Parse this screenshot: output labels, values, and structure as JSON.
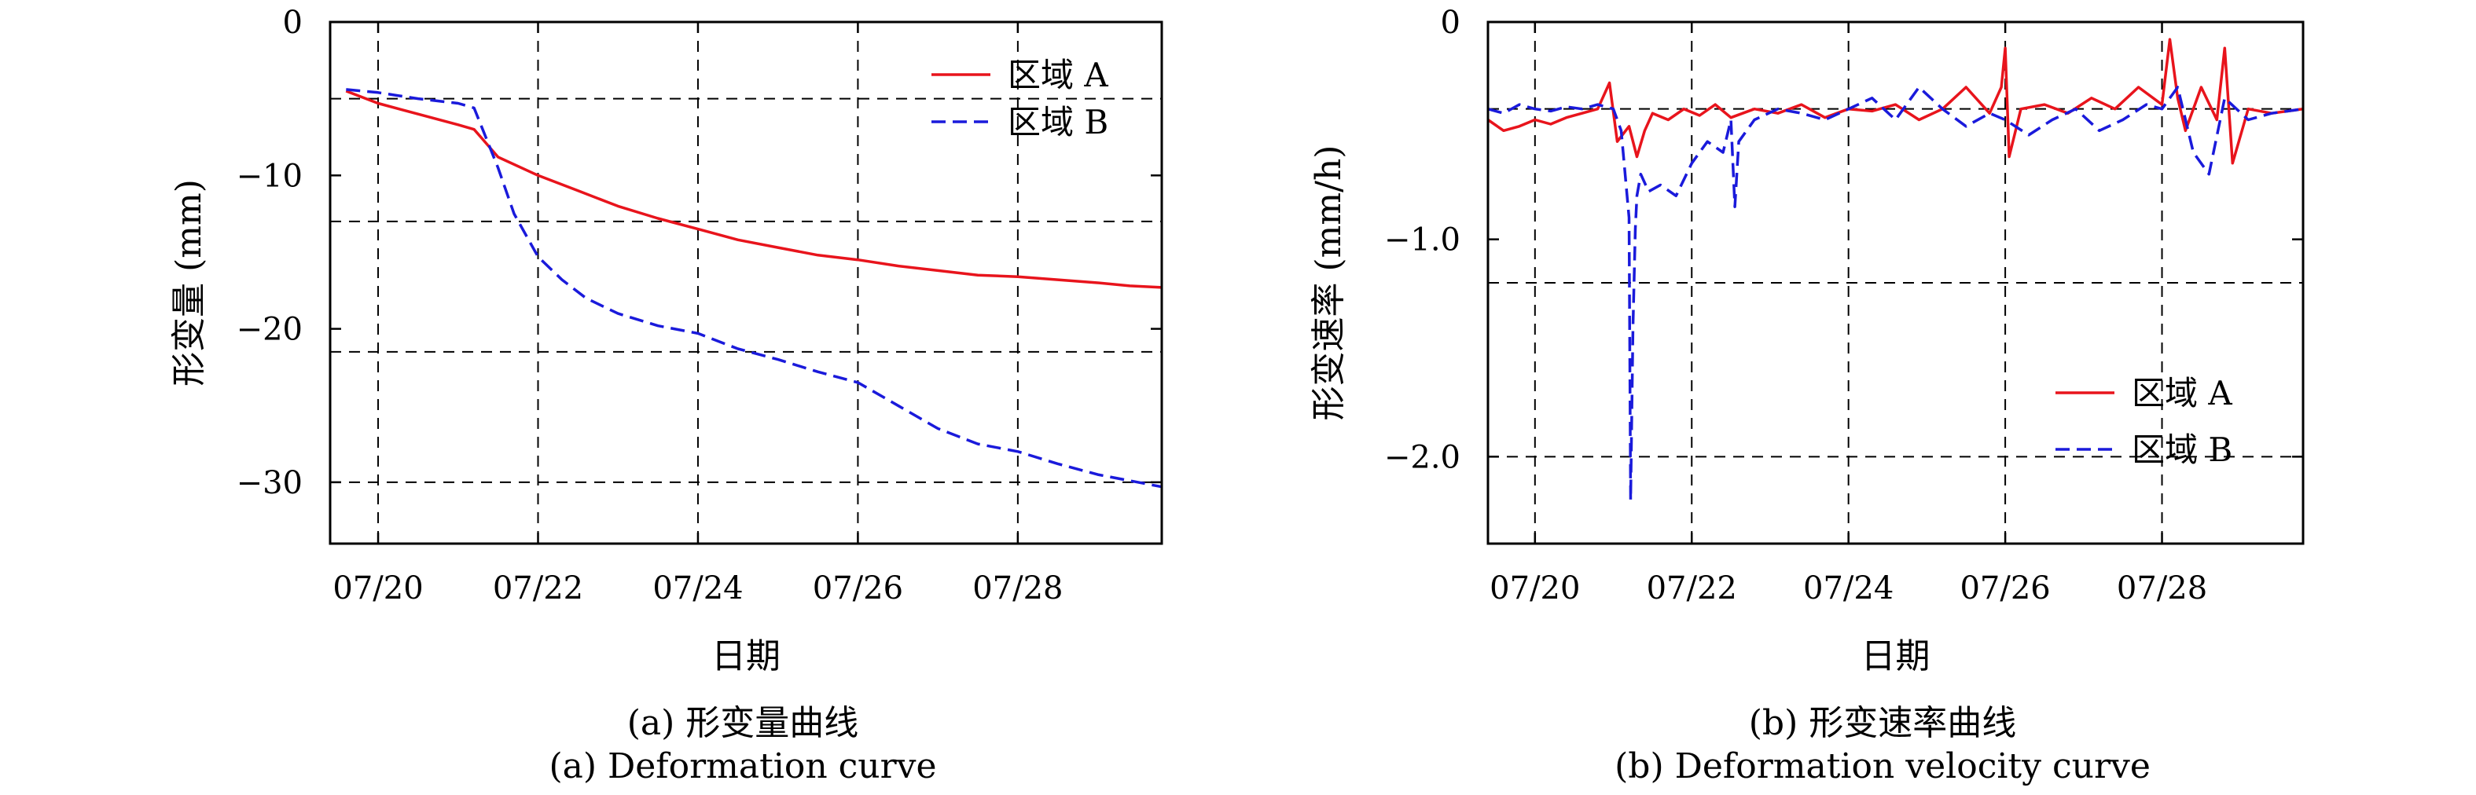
{
  "chart_data": [
    {
      "type": "line",
      "xlabel": "日期",
      "ylabel": "形变量 (mm)",
      "caption_zh": "(a) 形变量曲线",
      "caption_en": "(a) Deformation curve",
      "xlim": [
        19.4,
        29.8
      ],
      "ylim": [
        -34,
        0
      ],
      "xticks": [
        20,
        22,
        24,
        26,
        28
      ],
      "xtick_labels": [
        "07/20",
        "07/22",
        "07/24",
        "07/26",
        "07/28"
      ],
      "yticks": [
        0,
        -10,
        -20,
        -30
      ],
      "ytick_labels": [
        "0",
        "−10",
        "−20",
        "−30"
      ],
      "grid": true,
      "legend_position": "top-right",
      "series": [
        {
          "name": "区域 A",
          "color": "#e8141c",
          "dash": "solid",
          "x": [
            19.6,
            20.0,
            20.5,
            21.0,
            21.2,
            21.3,
            21.5,
            22.0,
            22.5,
            23.0,
            23.5,
            24.0,
            24.5,
            25.0,
            25.5,
            26.0,
            26.5,
            27.0,
            27.5,
            28.0,
            28.5,
            29.0,
            29.4,
            29.8
          ],
          "y": [
            -4.5,
            -5.3,
            -6.0,
            -6.7,
            -7.0,
            -7.6,
            -8.8,
            -10.0,
            -11.0,
            -12.0,
            -12.8,
            -13.5,
            -14.2,
            -14.7,
            -15.2,
            -15.5,
            -15.9,
            -16.2,
            -16.5,
            -16.6,
            -16.8,
            -17.0,
            -17.2,
            -17.3
          ]
        },
        {
          "name": "区域 B",
          "color": "#1a1adb",
          "dash": "dashed",
          "x": [
            19.6,
            20.0,
            20.5,
            21.0,
            21.2,
            21.3,
            21.5,
            21.7,
            22.0,
            22.3,
            22.6,
            23.0,
            23.5,
            24.0,
            24.5,
            25.0,
            25.5,
            26.0,
            26.5,
            27.0,
            27.5,
            28.0,
            28.5,
            29.0,
            29.4,
            29.8
          ],
          "y": [
            -4.4,
            -4.6,
            -5.0,
            -5.3,
            -5.6,
            -6.9,
            -9.5,
            -12.5,
            -15.3,
            -16.8,
            -18.0,
            -19.0,
            -19.8,
            -20.3,
            -21.3,
            -22.0,
            -22.8,
            -23.5,
            -25.0,
            -26.5,
            -27.5,
            -28.0,
            -28.8,
            -29.5,
            -29.9,
            -30.3
          ]
        }
      ]
    },
    {
      "type": "line",
      "xlabel": "日期",
      "ylabel": "形变速率 (mm/h)",
      "caption_zh": "(b) 形变速率曲线",
      "caption_en": "(b) Deformation velocity curve",
      "xlim": [
        19.4,
        29.8
      ],
      "ylim": [
        -2.4,
        0
      ],
      "xticks": [
        20,
        22,
        24,
        26,
        28
      ],
      "xtick_labels": [
        "07/20",
        "07/22",
        "07/24",
        "07/26",
        "07/28"
      ],
      "yticks": [
        0,
        -1.0,
        -2.0
      ],
      "ytick_labels": [
        "0",
        "−1.0",
        "−2.0"
      ],
      "grid": true,
      "legend_position": "bottom-right",
      "series": [
        {
          "name": "区域 A",
          "color": "#e8141c",
          "dash": "solid",
          "x": [
            19.4,
            19.6,
            19.8,
            20.0,
            20.2,
            20.4,
            20.6,
            20.8,
            20.95,
            21.05,
            21.2,
            21.3,
            21.4,
            21.5,
            21.7,
            21.9,
            22.1,
            22.3,
            22.5,
            22.8,
            23.1,
            23.4,
            23.7,
            24.0,
            24.3,
            24.6,
            24.9,
            25.2,
            25.5,
            25.8,
            25.95,
            26.0,
            26.05,
            26.2,
            26.5,
            26.8,
            27.1,
            27.4,
            27.7,
            28.0,
            28.1,
            28.2,
            28.3,
            28.5,
            28.7,
            28.8,
            28.9,
            29.1,
            29.4,
            29.8
          ],
          "y": [
            -0.45,
            -0.5,
            -0.48,
            -0.45,
            -0.47,
            -0.44,
            -0.42,
            -0.4,
            -0.28,
            -0.55,
            -0.48,
            -0.62,
            -0.5,
            -0.42,
            -0.45,
            -0.4,
            -0.43,
            -0.38,
            -0.44,
            -0.4,
            -0.42,
            -0.38,
            -0.44,
            -0.4,
            -0.41,
            -0.38,
            -0.45,
            -0.4,
            -0.3,
            -0.42,
            -0.3,
            -0.12,
            -0.62,
            -0.4,
            -0.38,
            -0.42,
            -0.35,
            -0.4,
            -0.3,
            -0.38,
            -0.08,
            -0.35,
            -0.5,
            -0.3,
            -0.45,
            -0.12,
            -0.65,
            -0.4,
            -0.42,
            -0.4
          ]
        },
        {
          "name": "区域 B",
          "color": "#1a1adb",
          "dash": "dashed",
          "x": [
            19.4,
            19.6,
            19.8,
            20.0,
            20.2,
            20.4,
            20.6,
            20.8,
            21.0,
            21.1,
            21.2,
            21.22,
            21.25,
            21.28,
            21.3,
            21.35,
            21.45,
            21.6,
            21.8,
            22.0,
            22.2,
            22.4,
            22.5,
            22.55,
            22.6,
            22.8,
            23.1,
            23.4,
            23.7,
            24.0,
            24.3,
            24.6,
            24.9,
            25.2,
            25.5,
            25.8,
            26.0,
            26.3,
            26.6,
            26.9,
            27.2,
            27.5,
            27.8,
            28.0,
            28.2,
            28.4,
            28.6,
            28.8,
            29.1,
            29.4,
            29.8
          ],
          "y": [
            -0.4,
            -0.42,
            -0.38,
            -0.4,
            -0.41,
            -0.39,
            -0.4,
            -0.38,
            -0.4,
            -0.5,
            -0.9,
            -2.2,
            -1.4,
            -0.95,
            -0.8,
            -0.7,
            -0.78,
            -0.75,
            -0.8,
            -0.65,
            -0.55,
            -0.6,
            -0.45,
            -0.85,
            -0.55,
            -0.45,
            -0.4,
            -0.42,
            -0.45,
            -0.4,
            -0.35,
            -0.45,
            -0.3,
            -0.4,
            -0.48,
            -0.42,
            -0.45,
            -0.52,
            -0.45,
            -0.4,
            -0.5,
            -0.45,
            -0.38,
            -0.4,
            -0.3,
            -0.6,
            -0.7,
            -0.35,
            -0.45,
            -0.42,
            -0.4
          ]
        }
      ]
    }
  ]
}
